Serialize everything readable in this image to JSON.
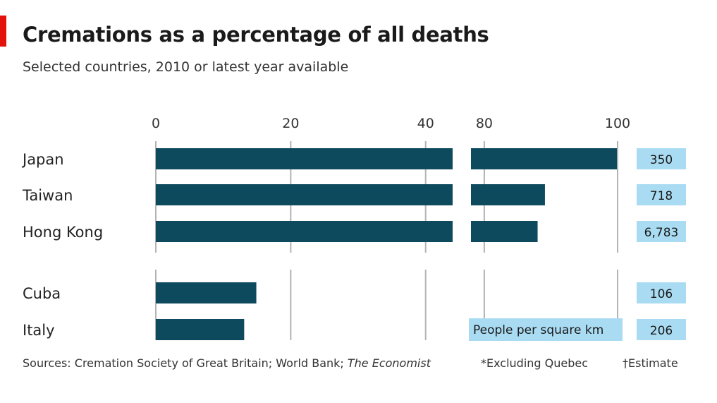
{
  "header": {
    "title": "Cremations as a percentage of all deaths",
    "subtitle": "Selected countries, 2010 or latest year available"
  },
  "colors": {
    "bar": "#0d4a5e",
    "density_box": "#a9dcf3",
    "grid": "#b3b3b3",
    "brand_tag": "#e3120b"
  },
  "chart_data": {
    "type": "bar",
    "orientation": "horizontal",
    "axis_break": true,
    "xlim_left_panel": [
      0,
      44
    ],
    "xlim_right_panel": [
      78,
      100
    ],
    "x_ticks_left": [
      0,
      20,
      40
    ],
    "x_ticks_right": [
      80,
      100
    ],
    "x_tick_labels_left": [
      "0",
      "20",
      "40"
    ],
    "x_tick_labels_right": [
      "80",
      "100"
    ],
    "categories": [
      "Japan",
      "Taiwan",
      "Hong Kong",
      "Cuba",
      "Italy"
    ],
    "values": [
      99.9,
      89.1,
      88.0,
      14.9,
      13.1
    ],
    "secondary_series": {
      "name": "People per square km",
      "values": [
        "350",
        "718",
        "6,783",
        "106",
        "206"
      ]
    },
    "legend": "People per square km",
    "grid": true
  },
  "footer": {
    "sources_prefix": "Sources: Cremation Society of Great Britain; World Bank; ",
    "sources_italic": "The Economist",
    "note_excluding": "*Excluding Quebec",
    "note_estimate": "†Estimate"
  }
}
